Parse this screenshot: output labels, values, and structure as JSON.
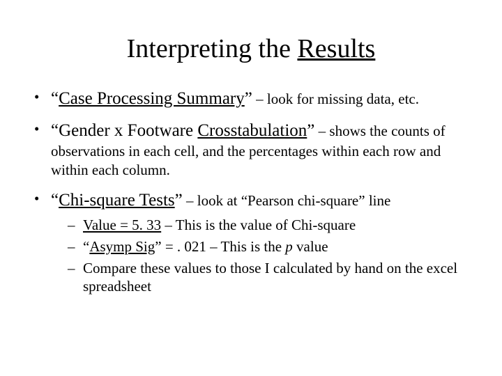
{
  "title_plain": "Interpreting the ",
  "title_underlined": "Results",
  "bullets": [
    {
      "lead_open_quote": "“",
      "lead_underlined": "Case Processing Summary",
      "lead_close_quote": "”",
      "rest": " – look for missing data, etc."
    },
    {
      "lead_open_quote": "“",
      "lead_plain": "Gender x Footware ",
      "lead_underlined": "Crosstabulation",
      "lead_close_quote": "”",
      "rest": " – shows the counts of observations in each cell, and the percentages within each row and within each column."
    },
    {
      "lead_open_quote": "“",
      "lead_underlined": "Chi-square Tests",
      "lead_close_quote": "”",
      "rest": " – look at “Pearson chi-square” line",
      "sub": [
        {
          "u": "Value = 5. 33",
          "after": " – This is the value of Chi-square"
        },
        {
          "pre": "“",
          "u": "Asymp Sig",
          "mid": "” = . 021 – This is the ",
          "ital": "p",
          "after": " value"
        },
        {
          "plain": "Compare these values to those I calculated by hand on the excel spreadsheet"
        }
      ]
    }
  ]
}
